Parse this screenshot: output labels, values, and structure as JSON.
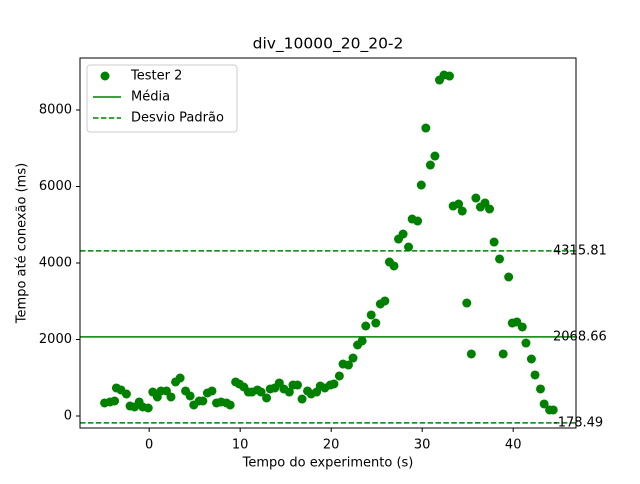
{
  "chart_data": {
    "type": "scatter",
    "title": "div_10000_20_20-2",
    "x_label": "Tempo do experimento (s)",
    "y_label": "Tempo até conexão (ms)",
    "xlim": [
      -7.6,
      46.9
    ],
    "ylim": [
      -314,
      9360
    ],
    "xticks": [
      0,
      10,
      20,
      30,
      40
    ],
    "yticks": [
      0,
      2000,
      4000,
      6000,
      8000
    ],
    "legend": "upper left",
    "series": [
      {
        "name": "Tester 2",
        "color": "#008000",
        "x": [
          -4.9,
          -4.3,
          -3.8,
          -3.6,
          -3.1,
          -2.5,
          -2.1,
          -1.6,
          -1.1,
          -0.7,
          -0.1,
          0.4,
          0.9,
          1.3,
          1.9,
          2.4,
          2.9,
          3.4,
          4.0,
          4.5,
          4.9,
          5.5,
          5.9,
          6.4,
          6.9,
          7.4,
          7.9,
          8.5,
          8.9,
          9.5,
          9.9,
          10.4,
          10.9,
          11.3,
          11.9,
          12.3,
          12.9,
          13.3,
          13.8,
          14.3,
          14.8,
          15.4,
          15.8,
          16.3,
          16.8,
          17.4,
          17.8,
          18.4,
          18.8,
          19.3,
          19.9,
          20.3,
          20.9,
          21.3,
          21.9,
          22.4,
          22.9,
          23.4,
          23.8,
          24.4,
          24.9,
          25.4,
          25.9,
          26.4,
          26.9,
          27.4,
          27.9,
          28.5,
          28.9,
          29.5,
          29.9,
          30.4,
          30.9,
          31.4,
          31.9,
          32.4,
          33.0,
          33.4,
          34.0,
          34.4,
          34.9,
          35.4,
          35.9,
          36.4,
          36.9,
          37.4,
          37.9,
          38.5,
          38.9,
          39.5,
          39.9,
          40.4,
          41.0,
          41.4,
          42.0,
          42.4,
          43.0,
          43.4,
          44.0,
          44.4
        ],
        "values": [
          340,
          366,
          392,
          732,
          680,
          575,
          261,
          235,
          366,
          235,
          209,
          627,
          497,
          654,
          654,
          497,
          889,
          993,
          654,
          523,
          288,
          392,
          392,
          601,
          654,
          340,
          366,
          340,
          288,
          889,
          837,
          758,
          627,
          627,
          680,
          627,
          471,
          706,
          732,
          863,
          706,
          627,
          810,
          810,
          444,
          654,
          575,
          627,
          784,
          732,
          810,
          837,
          1046,
          1359,
          1333,
          1516,
          1856,
          1961,
          2353,
          2641,
          2431,
          2928,
          3007,
          4026,
          3922,
          4627,
          4758,
          4418,
          5150,
          5098,
          6039,
          7529,
          6562,
          6797,
          8784,
          8915,
          8889,
          5490,
          5542,
          5359,
          2954,
          1621,
          5699,
          5464,
          5569,
          5412,
          4549,
          4105,
          1621,
          3634,
          2431,
          2458,
          2327,
          1908,
          1490,
          1072,
          706,
          314,
          157,
          157
        ]
      }
    ],
    "lines": [
      {
        "name": "Média",
        "color": "#008000",
        "style": "solid",
        "values": [
          2068.66
        ]
      },
      {
        "name": "Desvio Padrão",
        "color": "#008000",
        "style": "dashed",
        "values": [
          4315.81,
          -178.49
        ]
      }
    ]
  }
}
